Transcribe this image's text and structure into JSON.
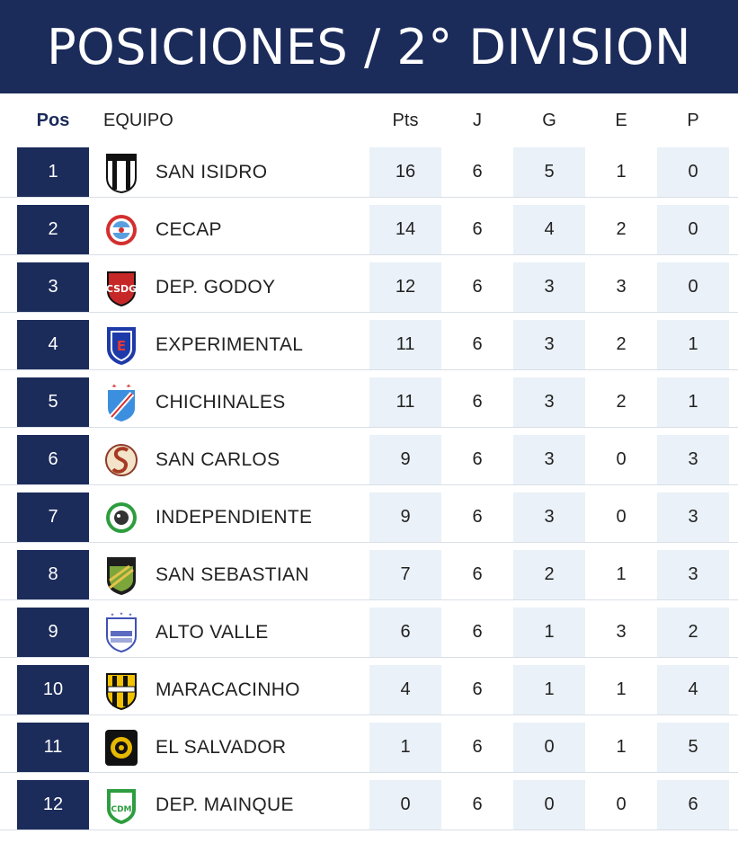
{
  "title": "POSICIONES / 2° DIVISION",
  "columns": {
    "pos": "Pos",
    "team": "EQUIPO",
    "pts": "Pts",
    "j": "J",
    "g": "G",
    "e": "E",
    "p": "P"
  },
  "colors": {
    "navy": "#1b2b5a",
    "shade": "#eaf1f8"
  },
  "rows": [
    {
      "pos": "1",
      "team": "SAN ISIDRO",
      "crest": "san-isidro-crest",
      "pts": "16",
      "j": "6",
      "g": "5",
      "e": "1",
      "p": "0"
    },
    {
      "pos": "2",
      "team": "CECAP",
      "crest": "cecap-crest",
      "pts": "14",
      "j": "6",
      "g": "4",
      "e": "2",
      "p": "0"
    },
    {
      "pos": "3",
      "team": "DEP. GODOY",
      "crest": "dep-godoy-crest",
      "pts": "12",
      "j": "6",
      "g": "3",
      "e": "3",
      "p": "0"
    },
    {
      "pos": "4",
      "team": "EXPERIMENTAL",
      "crest": "experimental-crest",
      "pts": "11",
      "j": "6",
      "g": "3",
      "e": "2",
      "p": "1"
    },
    {
      "pos": "5",
      "team": "CHICHINALES",
      "crest": "chichinales-crest",
      "pts": "11",
      "j": "6",
      "g": "3",
      "e": "2",
      "p": "1"
    },
    {
      "pos": "6",
      "team": "SAN CARLOS",
      "crest": "san-carlos-crest",
      "pts": "9",
      "j": "6",
      "g": "3",
      "e": "0",
      "p": "3"
    },
    {
      "pos": "7",
      "team": "INDEPENDIENTE",
      "crest": "independiente-crest",
      "pts": "9",
      "j": "6",
      "g": "3",
      "e": "0",
      "p": "3"
    },
    {
      "pos": "8",
      "team": "SAN SEBASTIAN",
      "crest": "san-sebastian-crest",
      "pts": "7",
      "j": "6",
      "g": "2",
      "e": "1",
      "p": "3"
    },
    {
      "pos": "9",
      "team": "ALTO VALLE",
      "crest": "alto-valle-crest",
      "pts": "6",
      "j": "6",
      "g": "1",
      "e": "3",
      "p": "2"
    },
    {
      "pos": "10",
      "team": "MARACACINHO",
      "crest": "maracacinho-crest",
      "pts": "4",
      "j": "6",
      "g": "1",
      "e": "1",
      "p": "4"
    },
    {
      "pos": "11",
      "team": "EL SALVADOR",
      "crest": "el-salvador-crest",
      "pts": "1",
      "j": "6",
      "g": "0",
      "e": "1",
      "p": "5"
    },
    {
      "pos": "12",
      "team": "DEP. MAINQUE",
      "crest": "dep-mainque-crest",
      "pts": "0",
      "j": "6",
      "g": "0",
      "e": "0",
      "p": "6"
    }
  ]
}
